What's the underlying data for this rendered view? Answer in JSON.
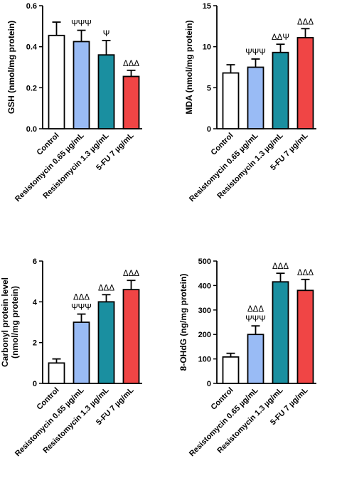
{
  "colors": {
    "control": "#ffffff",
    "resistomycin_low": "#99bbf5",
    "resistomycin_high": "#1a8fa0",
    "five_fu": "#f04545",
    "stroke": "#000000"
  },
  "chart_data": [
    {
      "type": "bar",
      "id": "gsh",
      "categories": [
        "Control",
        "Resistomycin 0.65 µg/mL",
        "Resistomycin 1.3 µg/mL",
        "5-FU 7 µg/mL"
      ],
      "values": [
        0.455,
        0.425,
        0.36,
        0.255
      ],
      "errors": [
        0.065,
        0.055,
        0.07,
        0.03
      ],
      "annotations": [
        [],
        [
          "ΨΨΨ"
        ],
        [
          "Ψ"
        ],
        [
          "ΔΔΔ"
        ]
      ],
      "ylabel_lines": [
        "GSH (nmol/mg protein)"
      ],
      "ylim": [
        0,
        0.6
      ],
      "yticks": [
        "0.0",
        "0.2",
        "0.4",
        "0.6"
      ],
      "grid": false
    },
    {
      "type": "bar",
      "id": "mda",
      "categories": [
        "Control",
        "Resistomycin 0.65 µg/mL",
        "Resistomycin 1.3 µg/mL",
        "5-FU 7 µg/mL"
      ],
      "values": [
        6.8,
        7.5,
        9.3,
        11.1
      ],
      "errors": [
        1.0,
        1.0,
        1.0,
        1.1
      ],
      "annotations": [
        [],
        [
          "ΨΨΨ"
        ],
        [
          "ΔΔΨ"
        ],
        [
          "ΔΔΔ"
        ]
      ],
      "ylabel_lines": [
        "MDA (nmol/mg protein)"
      ],
      "ylim": [
        0,
        15
      ],
      "yticks": [
        "0",
        "5",
        "10",
        "15"
      ],
      "grid": false
    },
    {
      "type": "bar",
      "id": "carbonyl",
      "categories": [
        "Control",
        "Resistomycin 0.65 µg/mL",
        "Resistomycin 1.3 µg/mL",
        "5-FU 7 µg/mL"
      ],
      "values": [
        1.0,
        3.0,
        4.0,
        4.6
      ],
      "errors": [
        0.2,
        0.4,
        0.35,
        0.45
      ],
      "annotations": [
        [],
        [
          "ΔΔΔ",
          "ΨΨΨ"
        ],
        [
          "ΔΔΔ"
        ],
        [
          "ΔΔΔ"
        ]
      ],
      "ylabel_lines": [
        "Carbonyl protein level",
        "(nmol/mg protein)"
      ],
      "ylim": [
        0,
        6
      ],
      "yticks": [
        "0",
        "2",
        "4",
        "6"
      ],
      "grid": false
    },
    {
      "type": "bar",
      "id": "ohdg",
      "categories": [
        "Control",
        "Resistomycin 0.65 µg/mL",
        "Resistomycin 1.3 µg/mL",
        "5-FU 7 µg/mL"
      ],
      "values": [
        108,
        200,
        415,
        380
      ],
      "errors": [
        15,
        35,
        35,
        45
      ],
      "annotations": [
        [],
        [
          "ΔΔΔ",
          "ΨΨΨ"
        ],
        [
          "ΔΔΔ"
        ],
        [
          "ΔΔΔ"
        ]
      ],
      "ylabel_lines": [
        "8-OHdG (ng/mg protein)"
      ],
      "ylim": [
        0,
        500
      ],
      "yticks": [
        "0",
        "100",
        "200",
        "300",
        "400",
        "500"
      ],
      "grid": false
    }
  ]
}
